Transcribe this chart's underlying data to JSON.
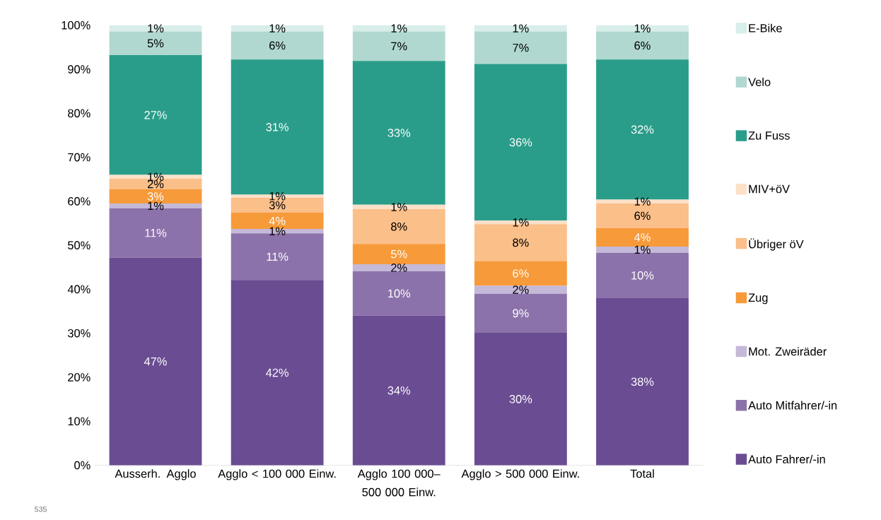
{
  "chart_data": {
    "type": "bar",
    "stacked": true,
    "categories": [
      "Ausserh. Agglo",
      "Agglo < 100 000 Einw.",
      "Agglo 100 000–500 000 Einw.",
      "Agglo > 500 000 Einw.",
      "Total"
    ],
    "series": [
      {
        "name": "Auto Fahrer/-in",
        "color": "#6a4c93",
        "values": [
          47.2,
          42.1,
          34.0,
          30.1,
          38.0
        ],
        "value_labels": [
          "47%",
          "42%",
          "34%",
          "30%",
          "38%"
        ]
      },
      {
        "name": "Auto Mitfahrer/-in",
        "color": "#8c72aa",
        "values": [
          11.2,
          10.6,
          10.1,
          8.9,
          10.3
        ],
        "value_labels": [
          "11%",
          "11%",
          "10%",
          "9%",
          "10%"
        ]
      },
      {
        "name": "Mot. Zweiräder",
        "color": "#c5b9d9",
        "values": [
          1.1,
          1.0,
          1.6,
          1.8,
          1.4
        ],
        "value_labels": [
          "1%",
          "1%",
          "2%",
          "2%",
          "1%"
        ]
      },
      {
        "name": "Zug",
        "color": "#f79a3a",
        "values": [
          3.2,
          3.7,
          4.6,
          5.6,
          4.2
        ],
        "value_labels": [
          "3%",
          "4%",
          "5%",
          "6%",
          "4%"
        ]
      },
      {
        "name": "Übriger öV",
        "color": "#fbbf8a",
        "values": [
          2.4,
          3.4,
          7.9,
          8.4,
          5.6
        ],
        "value_labels": [
          "2%",
          "3%",
          "8%",
          "8%",
          "6%"
        ]
      },
      {
        "name": "MIV+öV",
        "color": "#fde0c8",
        "values": [
          0.9,
          0.7,
          1.0,
          0.8,
          0.9
        ],
        "value_labels": [
          "1%",
          "1%",
          "1%",
          "1%",
          "1%"
        ]
      },
      {
        "name": "Zu Fuss",
        "color": "#2a9d8a",
        "values": [
          27.2,
          30.7,
          32.7,
          35.6,
          31.8
        ],
        "value_labels": [
          "27%",
          "31%",
          "33%",
          "36%",
          "32%"
        ]
      },
      {
        "name": "Velo",
        "color": "#b0d8d0",
        "values": [
          5.4,
          6.4,
          6.7,
          7.4,
          6.4
        ],
        "value_labels": [
          "5%",
          "6%",
          "7%",
          "7%",
          "6%"
        ]
      },
      {
        "name": "E-Bike",
        "color": "#d8eeea",
        "values": [
          1.4,
          1.4,
          1.4,
          1.4,
          1.4
        ],
        "value_labels": [
          "1%",
          "1%",
          "1%",
          "1%",
          "1%"
        ]
      }
    ],
    "ylim": [
      0,
      100
    ],
    "yticks": [
      {
        "value": 0,
        "label": "0%"
      },
      {
        "value": 10,
        "label": "10%"
      },
      {
        "value": 20,
        "label": "20%"
      },
      {
        "value": 30,
        "label": "30%"
      },
      {
        "value": 40,
        "label": "40%"
      },
      {
        "value": 50,
        "label": "50%"
      },
      {
        "value": 60,
        "label": "60%"
      },
      {
        "value": 70,
        "label": "70%"
      },
      {
        "value": 80,
        "label": "80%"
      },
      {
        "value": 90,
        "label": "90%"
      },
      {
        "value": 100,
        "label": "100%"
      }
    ],
    "legend": "right",
    "annotations": [
      "535"
    ]
  }
}
